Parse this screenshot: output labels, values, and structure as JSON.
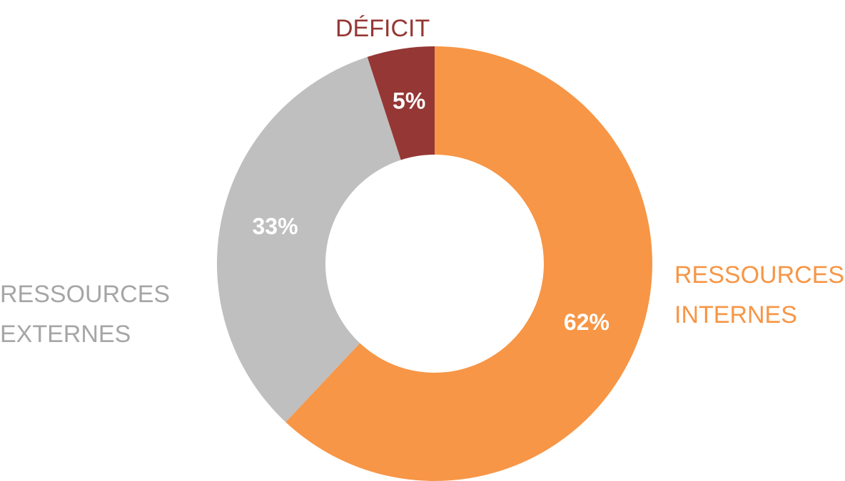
{
  "chart_data": {
    "type": "donut",
    "categories": [
      "RESSOURCES INTERNES",
      "RESSOURCES EXTERNES",
      "DÉFICIT"
    ],
    "values": [
      62,
      33,
      5
    ],
    "value_labels": [
      "62%",
      "33%",
      "5%"
    ],
    "colors": [
      "#f79646",
      "#bfbfbf",
      "#953735"
    ],
    "label_colors": [
      "#f79646",
      "#a6a6a6",
      "#953735"
    ]
  }
}
